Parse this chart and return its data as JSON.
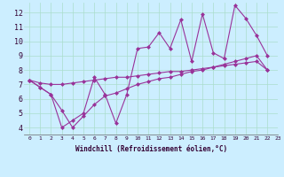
{
  "xlabel": "Windchill (Refroidissement éolien,°C)",
  "background_color": "#cceeff",
  "line_color": "#993399",
  "xlim": [
    -0.5,
    23
  ],
  "ylim": [
    3.5,
    12.7
  ],
  "xticks": [
    0,
    1,
    2,
    3,
    4,
    5,
    6,
    7,
    8,
    9,
    10,
    11,
    12,
    13,
    14,
    15,
    16,
    17,
    18,
    19,
    20,
    21,
    22,
    23
  ],
  "yticks": [
    4,
    5,
    6,
    7,
    8,
    9,
    10,
    11,
    12
  ],
  "grid_color": "#aaddcc",
  "series1": [
    7.3,
    6.8,
    6.3,
    4.0,
    4.5,
    5.0,
    7.5,
    6.3,
    4.3,
    6.3,
    9.5,
    9.6,
    10.6,
    9.5,
    11.5,
    8.6,
    11.9,
    9.2,
    8.8,
    12.5,
    11.6,
    10.4,
    9.0
  ],
  "series2": [
    7.3,
    7.1,
    7.0,
    7.0,
    7.1,
    7.2,
    7.3,
    7.4,
    7.5,
    7.5,
    7.6,
    7.7,
    7.8,
    7.9,
    7.9,
    8.0,
    8.1,
    8.2,
    8.3,
    8.4,
    8.5,
    8.6,
    8.0
  ],
  "series3": [
    7.3,
    6.8,
    6.3,
    5.2,
    4.0,
    4.8,
    5.6,
    6.2,
    6.4,
    6.7,
    7.0,
    7.2,
    7.4,
    7.5,
    7.7,
    7.9,
    8.0,
    8.2,
    8.4,
    8.6,
    8.8,
    9.0,
    8.0
  ],
  "marker": "D",
  "markersize": 2.0,
  "linewidth": 0.8,
  "xlabel_fontsize": 5.5,
  "tick_fontsize_x": 4.5,
  "tick_fontsize_y": 6.0,
  "figsize": [
    3.2,
    2.0
  ],
  "dpi": 100
}
